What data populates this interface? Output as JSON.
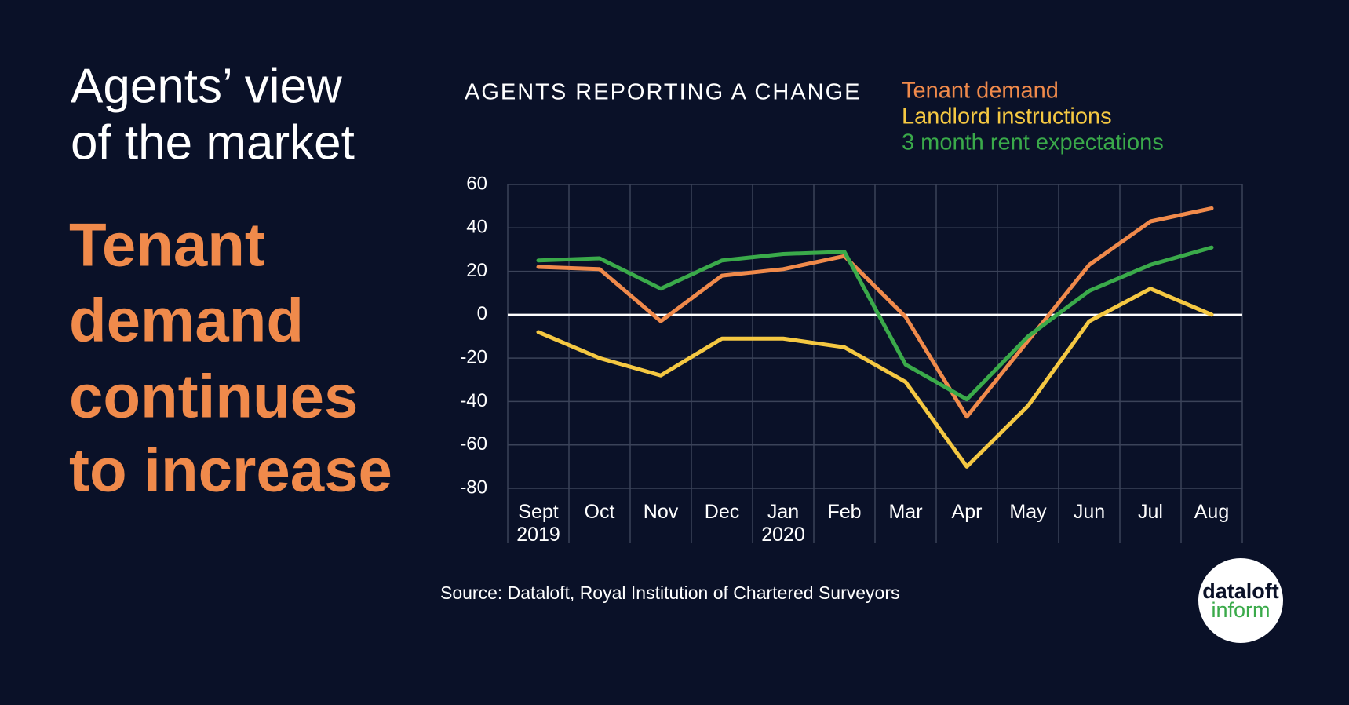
{
  "heading": [
    "Agents’ view",
    "of the market"
  ],
  "headline": [
    "Tenant",
    "demand",
    "continues",
    "to increase"
  ],
  "logo": {
    "top": "dataloft",
    "bottom": "inform"
  },
  "chart_data": {
    "type": "line",
    "title": "AGENTS REPORTING A CHANGE",
    "source": "Source:  Dataloft, Royal Institution of Chartered Surveyors",
    "categories": [
      "Sept 2019",
      "Oct",
      "Nov",
      "Dec",
      "Jan 2020",
      "Feb",
      "Mar",
      "Apr",
      "May",
      "Jun",
      "Jul",
      "Aug"
    ],
    "series": [
      {
        "name": "Tenant demand",
        "color": "#f08a4b",
        "values": [
          22,
          21,
          -3,
          18,
          21,
          27,
          -1,
          -47,
          -12,
          23,
          43,
          49
        ]
      },
      {
        "name": "Landlord instructions",
        "color": "#f5c842",
        "values": [
          -8,
          -20,
          -28,
          -11,
          -11,
          -15,
          -31,
          -70,
          -42,
          -3,
          12,
          0
        ]
      },
      {
        "name": "3 month rent expectations",
        "color": "#3aaa4a",
        "values": [
          25,
          26,
          12,
          25,
          28,
          29,
          -23,
          -39,
          -10,
          11,
          23,
          31
        ]
      }
    ],
    "ylim": [
      -80,
      60
    ],
    "yticks": [
      -80,
      -60,
      -40,
      -20,
      0,
      20,
      40,
      60
    ],
    "grid": true
  }
}
